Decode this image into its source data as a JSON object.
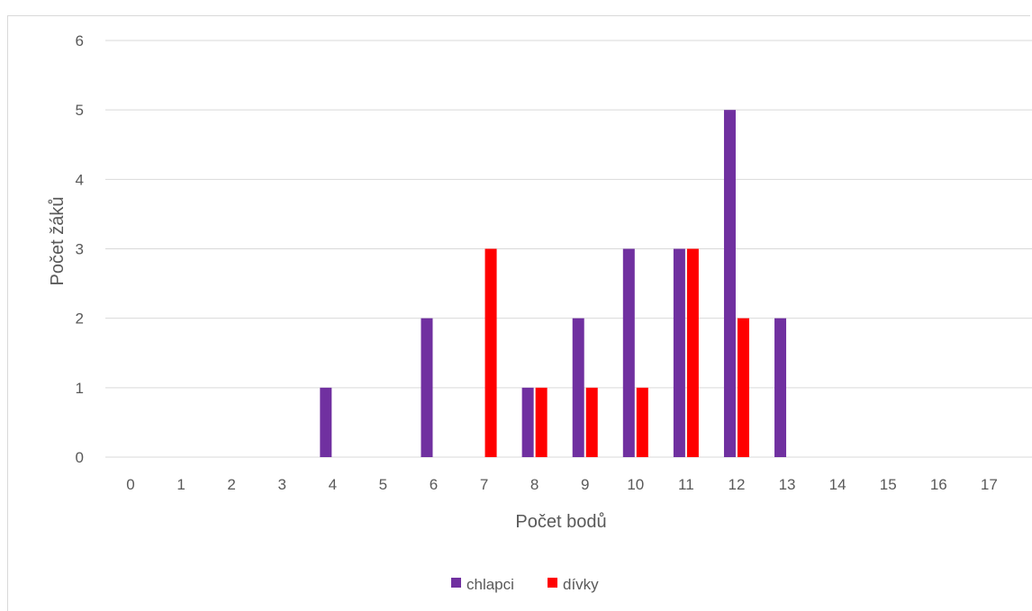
{
  "chart_data": {
    "type": "bar",
    "categories": [
      "0",
      "1",
      "2",
      "3",
      "4",
      "5",
      "6",
      "7",
      "8",
      "9",
      "10",
      "11",
      "12",
      "13",
      "14",
      "15",
      "16",
      "17"
    ],
    "series": [
      {
        "name": "chlapci",
        "color": "#7030a0",
        "values": [
          0,
          0,
          0,
          0,
          1,
          0,
          2,
          0,
          1,
          2,
          3,
          3,
          5,
          2,
          0,
          0,
          0,
          0
        ]
      },
      {
        "name": "dívky",
        "color": "#ff0000",
        "values": [
          0,
          0,
          0,
          0,
          0,
          0,
          0,
          3,
          1,
          1,
          1,
          3,
          2,
          0,
          0,
          0,
          0,
          0
        ]
      }
    ],
    "title": "",
    "xlabel": "Počet bodů",
    "ylabel": "Počet žáků",
    "ylim": [
      0,
      6
    ],
    "yticks": [
      "0",
      "1",
      "2",
      "3",
      "4",
      "5",
      "6"
    ],
    "grid": true,
    "legend_position": "bottom"
  }
}
